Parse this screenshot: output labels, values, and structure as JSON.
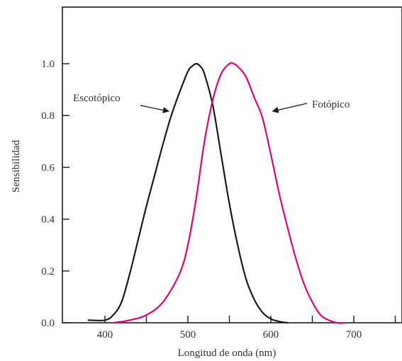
{
  "chart_data": {
    "type": "line",
    "title": "",
    "xlabel": "Longitud de onda (nm)",
    "ylabel": "Sensibilidad",
    "xlim": [
      350,
      750
    ],
    "ylim": [
      0.0,
      1.2
    ],
    "x_ticks": [
      400,
      450,
      500,
      550,
      600,
      650,
      700,
      750
    ],
    "x_tick_labels": [
      "400",
      "",
      "500",
      "",
      "600",
      "",
      "700",
      ""
    ],
    "y_ticks": [
      0.0,
      0.2,
      0.4,
      0.6,
      0.8,
      1.0
    ],
    "y_tick_labels": [
      "0.0",
      "0.2",
      "0.4",
      "0.6",
      "0.8",
      "1.0"
    ],
    "grid": false,
    "legend": "none",
    "series": [
      {
        "name": "Escotópico",
        "color": "#1a1a1a",
        "x": [
          380,
          400,
          410,
          420,
          430,
          440,
          450,
          460,
          470,
          480,
          490,
          500,
          505,
          510,
          515,
          520,
          530,
          540,
          550,
          560,
          570,
          580,
          590,
          600,
          610,
          620
        ],
        "y": [
          0.01,
          0.01,
          0.03,
          0.08,
          0.19,
          0.32,
          0.45,
          0.57,
          0.69,
          0.8,
          0.89,
          0.97,
          0.99,
          1.0,
          0.99,
          0.96,
          0.84,
          0.65,
          0.46,
          0.3,
          0.17,
          0.09,
          0.04,
          0.015,
          0.005,
          0.0
        ]
      },
      {
        "name": "Fotópico",
        "color": "#e6007e",
        "x": [
          410,
          430,
          450,
          470,
          490,
          500,
          510,
          520,
          530,
          540,
          550,
          555,
          560,
          570,
          580,
          590,
          600,
          610,
          620,
          630,
          640,
          650,
          660,
          670,
          680,
          690
        ],
        "y": [
          0.0,
          0.01,
          0.03,
          0.08,
          0.19,
          0.3,
          0.48,
          0.7,
          0.86,
          0.96,
          1.0,
          1.0,
          0.99,
          0.95,
          0.87,
          0.79,
          0.65,
          0.5,
          0.37,
          0.25,
          0.15,
          0.08,
          0.03,
          0.01,
          0.0,
          0.0
        ]
      }
    ],
    "annotations": [
      {
        "text": "Escotópico",
        "series": "Escotópico",
        "arrow_to": [
          477,
          0.8
        ]
      },
      {
        "text": "Fotópico",
        "series": "Fotópico",
        "arrow_to": [
          597,
          0.8
        ]
      }
    ]
  }
}
